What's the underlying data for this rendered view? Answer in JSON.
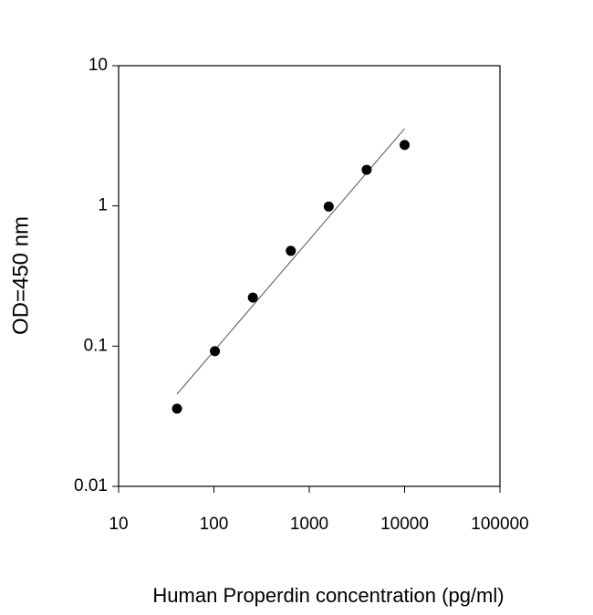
{
  "chart_data": {
    "type": "scatter",
    "x_label": "Human Properdin concentration (pg/ml)",
    "y_label": "OD=450 nm",
    "x": [
      41,
      102.4,
      256,
      640,
      1600,
      4000,
      10000
    ],
    "values": [
      0.0358,
      0.092,
      0.222,
      0.478,
      0.99,
      1.81,
      2.72
    ],
    "color": "#000000",
    "fit_line": {
      "x": [
        41,
        10000
      ],
      "y": [
        0.0455,
        3.56
      ],
      "color": "#555555"
    },
    "x_scale": "log",
    "y_scale": "log",
    "xlim": [
      10,
      100000
    ],
    "ylim": [
      0.01,
      10
    ],
    "xticks": [
      10,
      100,
      1000,
      10000,
      100000
    ],
    "yticks": [
      0.01,
      0.1,
      1,
      10
    ]
  }
}
